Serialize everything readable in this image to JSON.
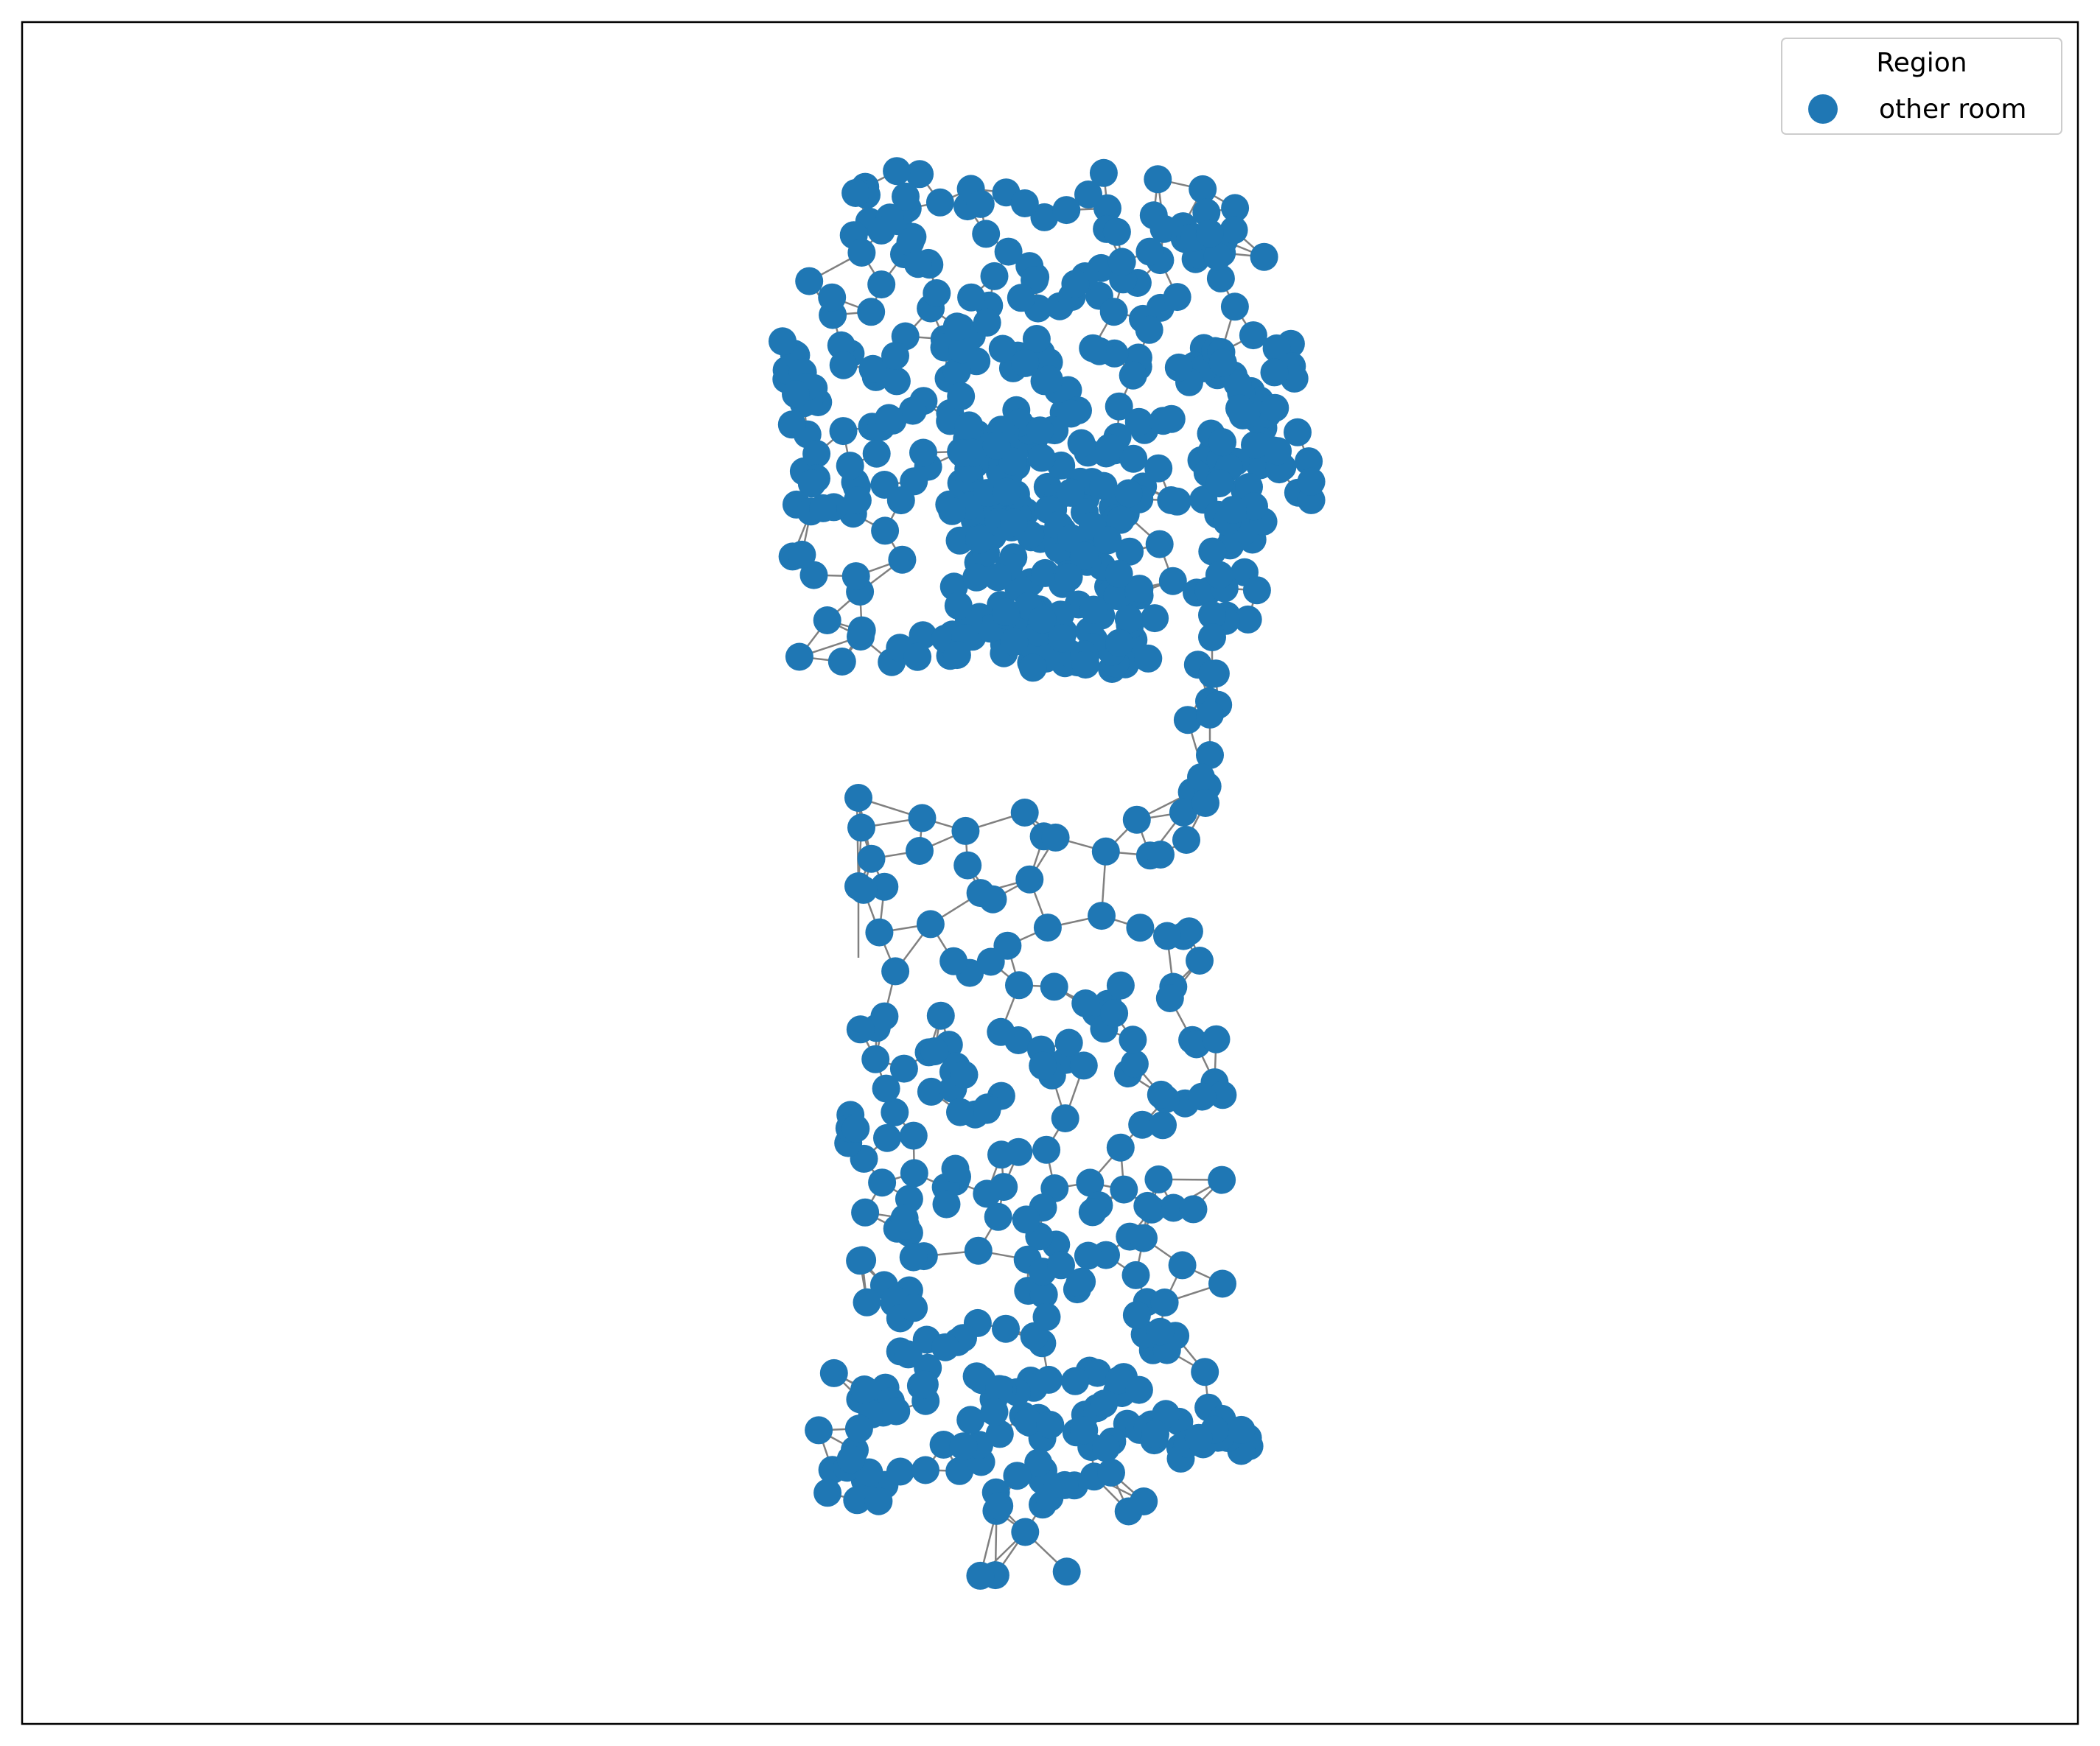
{
  "legend": {
    "title": "Region",
    "entries": [
      {
        "label": "other room",
        "color": "#1f77b4"
      }
    ]
  },
  "colors": {
    "node": "#1f77b4",
    "edge": "#808080",
    "frame": "#000000",
    "legend_border": "#cccccc"
  }
}
